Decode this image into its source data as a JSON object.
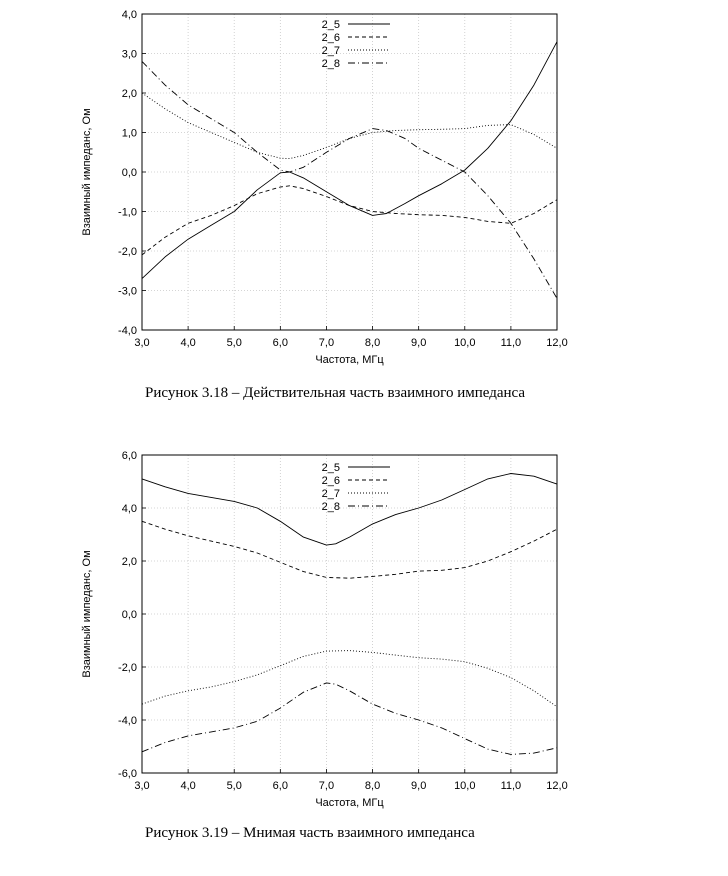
{
  "chart_data": [
    {
      "type": "line",
      "caption": "Рисунок 3.18 – Действительная часть взаимного импеданса",
      "xlabel": "Частота, МГц",
      "ylabel": "Взаимный импеданс, Ом",
      "xlim": [
        3,
        12
      ],
      "ylim": [
        -4,
        4
      ],
      "x_ticks": [
        "3,0",
        "4,0",
        "5,0",
        "6,0",
        "7,0",
        "8,0",
        "9,0",
        "10,0",
        "11,0",
        "12,0"
      ],
      "y_ticks": [
        "4,0",
        "3,0",
        "2,0",
        "1,0",
        "0,0",
        "-1,0",
        "-2,0",
        "-3,0",
        "-4,0"
      ],
      "grid": true,
      "legend_position": "top-center",
      "series": [
        {
          "name": "2_5",
          "dash": "solid",
          "x": [
            3,
            3.5,
            4,
            4.5,
            5,
            5.5,
            6,
            6.2,
            6.5,
            7,
            7.5,
            8,
            8.3,
            8.7,
            9,
            9.5,
            10,
            10.5,
            11,
            11.5,
            12
          ],
          "y": [
            -2.7,
            -2.15,
            -1.7,
            -1.35,
            -1.0,
            -0.45,
            -0.02,
            0.0,
            -0.15,
            -0.5,
            -0.85,
            -1.1,
            -1.05,
            -0.8,
            -0.6,
            -0.3,
            0.05,
            0.6,
            1.3,
            2.2,
            3.3
          ]
        },
        {
          "name": "2_6",
          "dash": "dashed",
          "x": [
            3,
            3.5,
            4,
            4.5,
            5,
            5.5,
            6,
            6.2,
            6.5,
            7,
            7.5,
            8,
            8.5,
            9,
            9.5,
            10,
            10.5,
            11,
            11.5,
            12
          ],
          "y": [
            -2.1,
            -1.65,
            -1.3,
            -1.1,
            -0.85,
            -0.55,
            -0.38,
            -0.35,
            -0.42,
            -0.62,
            -0.85,
            -1.0,
            -1.05,
            -1.08,
            -1.1,
            -1.15,
            -1.25,
            -1.3,
            -1.05,
            -0.7
          ]
        },
        {
          "name": "2_7",
          "dash": "dotted",
          "x": [
            3,
            3.5,
            4,
            4.5,
            5,
            5.5,
            6,
            6.2,
            6.5,
            7,
            7.5,
            8,
            8.5,
            9,
            9.5,
            10,
            10.5,
            11,
            11.5,
            12
          ],
          "y": [
            2.0,
            1.6,
            1.25,
            1.0,
            0.75,
            0.5,
            0.35,
            0.34,
            0.42,
            0.62,
            0.85,
            1.0,
            1.05,
            1.07,
            1.08,
            1.1,
            1.18,
            1.2,
            0.95,
            0.6
          ]
        },
        {
          "name": "2_8",
          "dash": "dashdot",
          "x": [
            3,
            3.5,
            4,
            4.5,
            5,
            5.5,
            6,
            6.2,
            6.5,
            7,
            7.5,
            8,
            8.3,
            8.7,
            9,
            9.5,
            10,
            10.5,
            11,
            11.5,
            12
          ],
          "y": [
            2.8,
            2.2,
            1.7,
            1.35,
            1.0,
            0.5,
            0.05,
            0.0,
            0.12,
            0.5,
            0.85,
            1.1,
            1.05,
            0.85,
            0.6,
            0.3,
            0.0,
            -0.6,
            -1.3,
            -2.2,
            -3.2
          ]
        }
      ]
    },
    {
      "type": "line",
      "caption": "Рисунок 3.19 – Мнимая часть взаимного импеданса",
      "xlabel": "Частота, МГц",
      "ylabel": "Взаимный импеданс, Ом",
      "xlim": [
        3,
        12
      ],
      "ylim": [
        -6,
        6
      ],
      "x_ticks": [
        "3,0",
        "4,0",
        "5,0",
        "6,0",
        "7,0",
        "8,0",
        "9,0",
        "10,0",
        "11,0",
        "12,0"
      ],
      "y_ticks": [
        "6,0",
        "4,0",
        "2,0",
        "0,0",
        "-2,0",
        "-4,0",
        "-6,0"
      ],
      "grid": true,
      "legend_position": "top-center",
      "series": [
        {
          "name": "2_5",
          "dash": "solid",
          "x": [
            3,
            3.5,
            4,
            4.5,
            5,
            5.5,
            6,
            6.5,
            7,
            7.2,
            7.5,
            8,
            8.5,
            9,
            9.5,
            10,
            10.5,
            11,
            11.5,
            12
          ],
          "y": [
            5.1,
            4.8,
            4.55,
            4.4,
            4.25,
            4.0,
            3.5,
            2.9,
            2.6,
            2.65,
            2.9,
            3.4,
            3.75,
            4.0,
            4.3,
            4.7,
            5.1,
            5.3,
            5.2,
            4.9
          ]
        },
        {
          "name": "2_6",
          "dash": "dashed",
          "x": [
            3,
            3.5,
            4,
            4.5,
            5,
            5.5,
            6,
            6.5,
            7,
            7.5,
            8,
            8.5,
            9,
            9.5,
            10,
            10.5,
            11,
            11.5,
            12
          ],
          "y": [
            3.5,
            3.2,
            2.95,
            2.75,
            2.55,
            2.3,
            1.95,
            1.6,
            1.38,
            1.35,
            1.42,
            1.5,
            1.62,
            1.65,
            1.75,
            2.0,
            2.35,
            2.75,
            3.2
          ]
        },
        {
          "name": "2_7",
          "dash": "dotted",
          "x": [
            3,
            3.5,
            4,
            4.5,
            5,
            5.5,
            6,
            6.5,
            7,
            7.5,
            8,
            8.5,
            9,
            9.5,
            10,
            10.5,
            11,
            11.5,
            12
          ],
          "y": [
            -3.4,
            -3.1,
            -2.9,
            -2.75,
            -2.55,
            -2.3,
            -1.95,
            -1.6,
            -1.4,
            -1.38,
            -1.45,
            -1.55,
            -1.65,
            -1.7,
            -1.8,
            -2.05,
            -2.4,
            -2.9,
            -3.5
          ]
        },
        {
          "name": "2_8",
          "dash": "dashdot",
          "x": [
            3,
            3.5,
            4,
            4.5,
            5,
            5.5,
            6,
            6.5,
            7,
            7.2,
            7.5,
            8,
            8.5,
            9,
            9.5,
            10,
            10.5,
            11,
            11.5,
            12
          ],
          "y": [
            -5.2,
            -4.85,
            -4.6,
            -4.45,
            -4.3,
            -4.05,
            -3.55,
            -2.95,
            -2.6,
            -2.65,
            -2.9,
            -3.4,
            -3.75,
            -4.0,
            -4.3,
            -4.7,
            -5.1,
            -5.3,
            -5.25,
            -5.05
          ]
        }
      ]
    }
  ]
}
